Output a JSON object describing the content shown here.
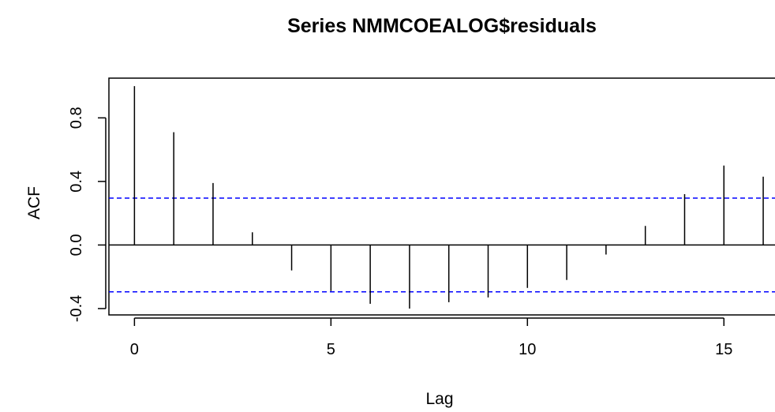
{
  "chart_data": {
    "type": "bar",
    "title": "Series  NMMCOEALOG$residuals",
    "xlabel": "Lag",
    "ylabel": "ACF",
    "xlim": [
      -0.65,
      16.3
    ],
    "ylim": [
      -0.44,
      1.05
    ],
    "x_ticks": [
      0,
      5,
      10,
      15
    ],
    "y_ticks": [
      -0.4,
      0.0,
      0.4,
      0.8
    ],
    "x_tick_labels": [
      "0",
      "5",
      "10",
      "15"
    ],
    "y_tick_labels": [
      "-0.4",
      "0.0",
      "0.4",
      "0.8"
    ],
    "lags": [
      0,
      1,
      2,
      3,
      4,
      5,
      6,
      7,
      8,
      9,
      10,
      11,
      12,
      13,
      14,
      15,
      16
    ],
    "values": [
      1.0,
      0.71,
      0.39,
      0.08,
      -0.16,
      -0.29,
      -0.37,
      -0.4,
      -0.36,
      -0.33,
      -0.27,
      -0.22,
      -0.06,
      0.12,
      0.32,
      0.5,
      0.43
    ],
    "confidence_bound": 0.295,
    "bar_color": "#000000",
    "ci_color": "#0000ff",
    "grid": false
  }
}
